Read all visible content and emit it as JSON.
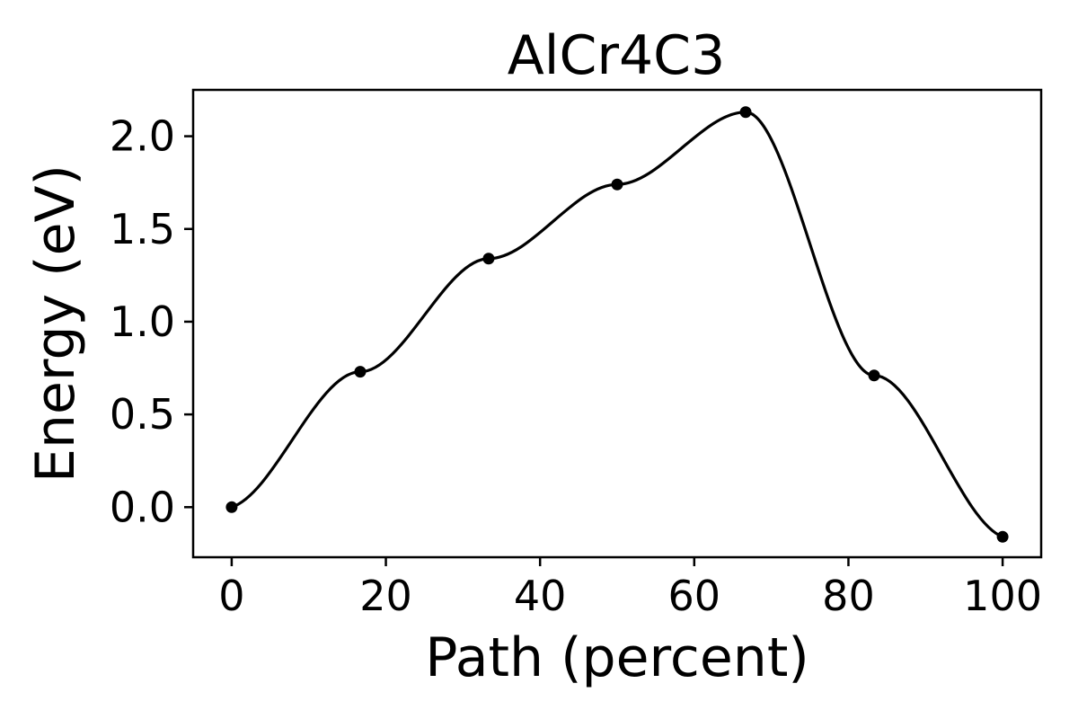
{
  "chart_data": {
    "type": "line",
    "title": "AlCr4C3",
    "xlabel": "Path (percent)",
    "ylabel": "Energy (eV)",
    "xlim": [
      -5,
      105
    ],
    "ylim": [
      -0.27,
      2.25
    ],
    "xticks": [
      "0",
      "20",
      "40",
      "60",
      "80",
      "100"
    ],
    "xtick_values": [
      0,
      20,
      40,
      60,
      80,
      100
    ],
    "yticks": [
      "0.0",
      "0.5",
      "1.0",
      "1.5",
      "2.0"
    ],
    "ytick_values": [
      0.0,
      0.5,
      1.0,
      1.5,
      2.0
    ],
    "grid": false,
    "series": [
      {
        "x": [
          0,
          16.67,
          33.33,
          50,
          66.67,
          83.33,
          100
        ],
        "y": [
          0.0,
          0.73,
          1.34,
          1.74,
          2.13,
          0.71,
          -0.16
        ],
        "color": "#000000",
        "markers": true
      }
    ]
  }
}
